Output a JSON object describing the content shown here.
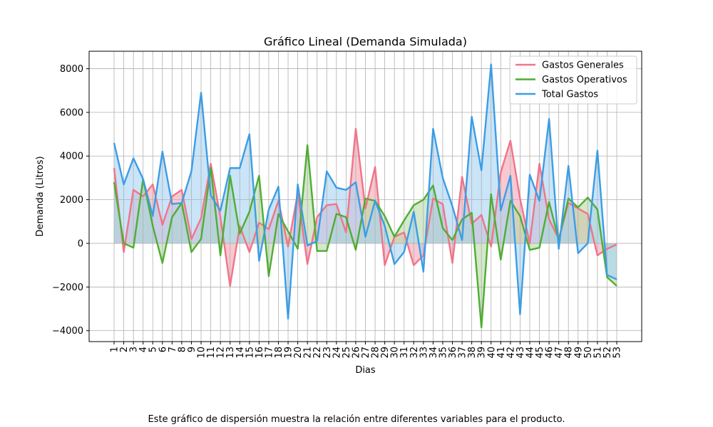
{
  "chart_data": {
    "type": "line",
    "title": "Gráfico Lineal (Demanda Simulada)",
    "xlabel": "Dias",
    "ylabel": "Demanda (Litros)",
    "ylim": [
      -4500,
      8800
    ],
    "yticks": [
      -4000,
      -2000,
      0,
      2000,
      4000,
      6000,
      8000
    ],
    "grid": true,
    "legend_position": "top-right",
    "categories": [
      "1",
      "2",
      "3",
      "4",
      "5",
      "6",
      "7",
      "8",
      "9",
      "10",
      "11",
      "12",
      "13",
      "14",
      "15",
      "16",
      "17",
      "18",
      "19",
      "20",
      "21",
      "22",
      "23",
      "24",
      "25",
      "26",
      "27",
      "28",
      "29",
      "30",
      "31",
      "32",
      "33",
      "34",
      "35",
      "36",
      "37",
      "38",
      "39",
      "40",
      "41",
      "42",
      "43",
      "44",
      "45",
      "46",
      "47",
      "48",
      "49",
      "50",
      "51",
      "52",
      "53"
    ],
    "series": [
      {
        "name": "Gastos Generales",
        "color": "#f07489",
        "fill_color": "#f5a3b1",
        "values": [
          3450,
          -400,
          2450,
          2150,
          2700,
          850,
          2150,
          2450,
          200,
          1150,
          3650,
          1200,
          -1950,
          800,
          -400,
          950,
          650,
          1950,
          -150,
          2300,
          -950,
          1200,
          1750,
          1800,
          500,
          5250,
          1600,
          3500,
          -1000,
          300,
          500,
          -1000,
          -550,
          2050,
          1800,
          -900,
          3050,
          900,
          1300,
          -150,
          3250,
          4700,
          2050,
          0,
          3650,
          1100,
          200,
          1850,
          1600,
          1350,
          -550,
          -250,
          -50
        ]
      },
      {
        "name": "Gastos Operativos",
        "color": "#4fad32",
        "fill_color": "#b8d9a7",
        "values": [
          2800,
          0,
          -200,
          2950,
          800,
          -900,
          1200,
          1850,
          -400,
          200,
          3450,
          -550,
          3100,
          450,
          1450,
          3100,
          -1500,
          1350,
          550,
          -250,
          4500,
          -350,
          -350,
          1350,
          1200,
          -300,
          2050,
          1950,
          1250,
          300,
          1050,
          1750,
          2000,
          2650,
          700,
          150,
          1100,
          1400,
          -3850,
          2250,
          -750,
          1950,
          1250,
          -300,
          -200,
          1900,
          150,
          2050,
          1650,
          2100,
          1550,
          -1550,
          -1950
        ]
      },
      {
        "name": "Total Gastos",
        "color": "#3b9de5",
        "fill_color": "#a7d2f3",
        "values": [
          4600,
          2700,
          3900,
          2950,
          1250,
          4200,
          1800,
          1850,
          3300,
          6900,
          2200,
          1500,
          3450,
          3450,
          5000,
          -800,
          1550,
          2600,
          -3450,
          2700,
          -100,
          100,
          3300,
          2550,
          2450,
          2800,
          300,
          1950,
          800,
          -950,
          -400,
          1450,
          -1300,
          5250,
          3000,
          1700,
          150,
          5800,
          3350,
          8200,
          1500,
          3100,
          -3250,
          3150,
          1950,
          5700,
          -250,
          3550,
          -450,
          0,
          4250,
          -1450,
          -1650
        ]
      }
    ]
  },
  "footer": {
    "caption": "Este gráfico de dispersión muestra la relación entre diferentes variables para el producto."
  }
}
